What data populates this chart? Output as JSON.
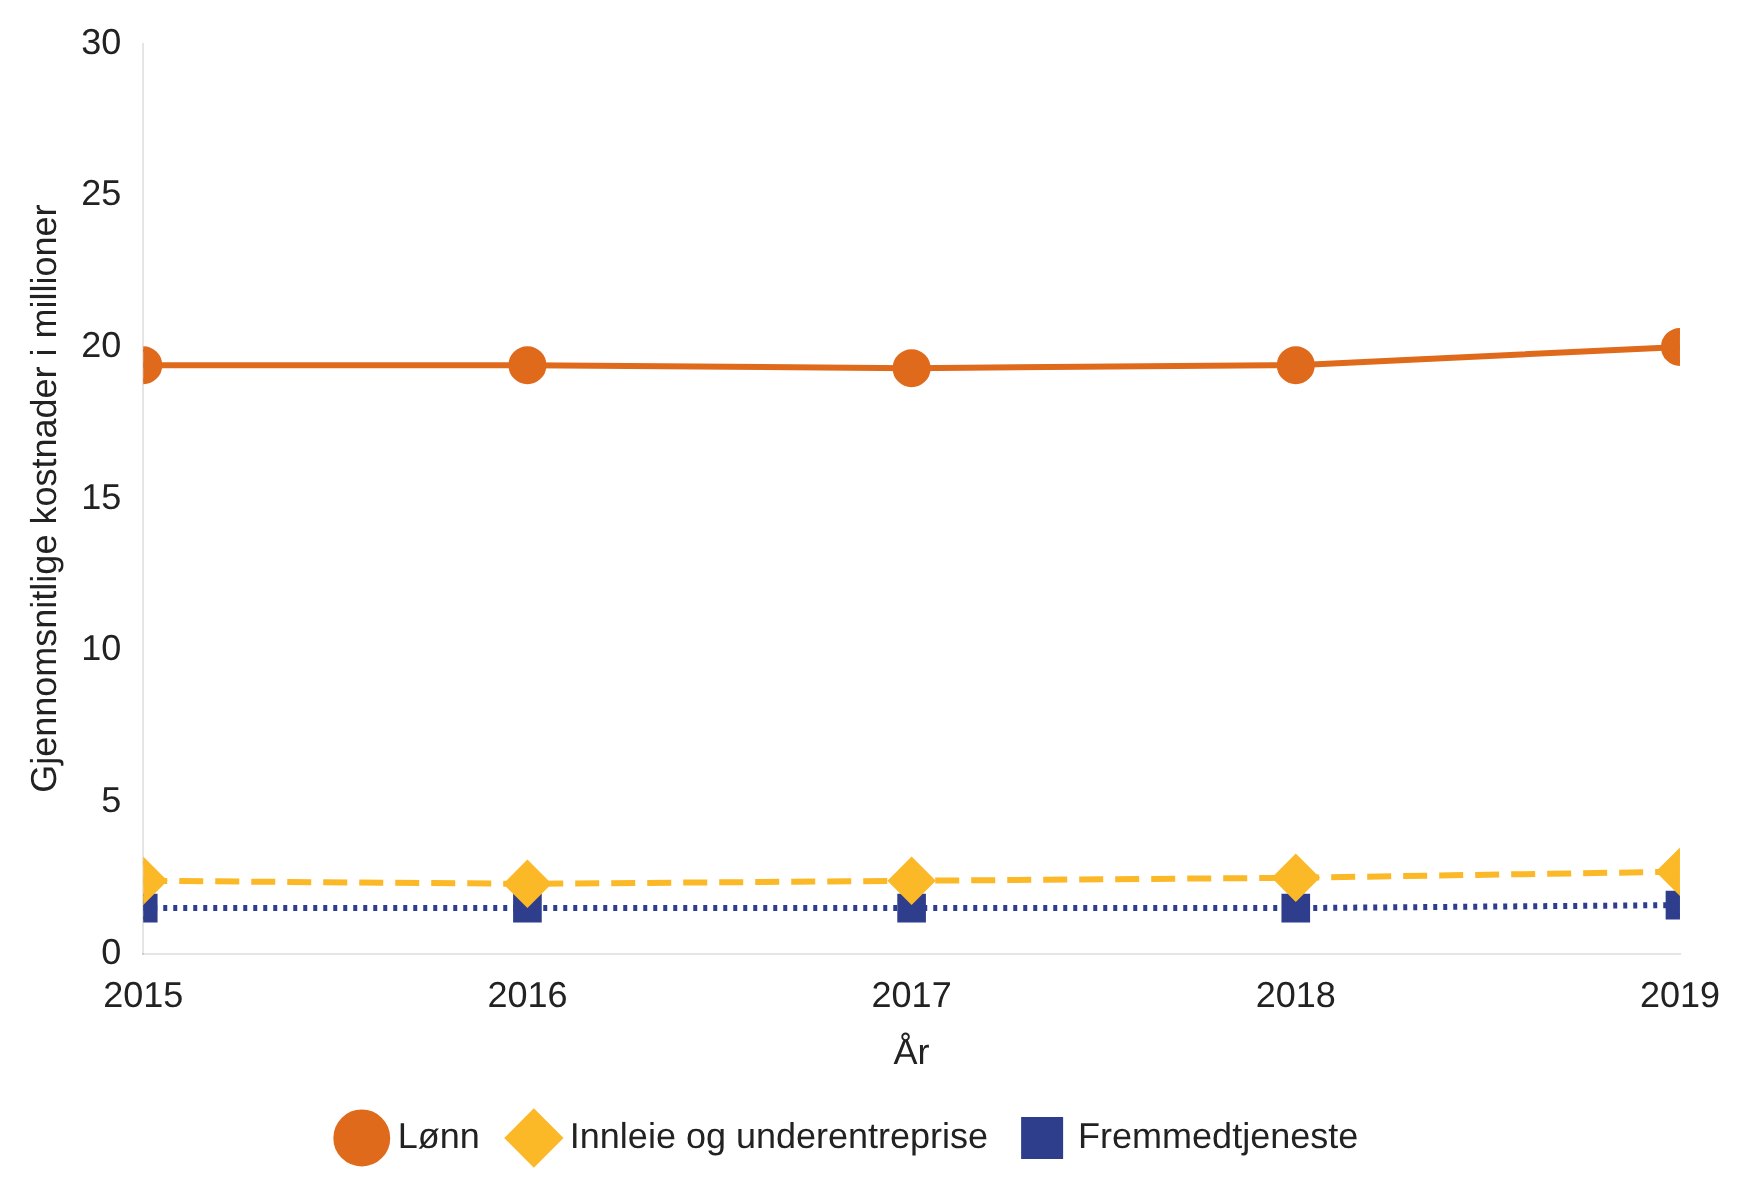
{
  "chart_data": {
    "type": "line",
    "xlabel": "År",
    "ylabel": "Gjennomsnitlige kostnader i millioner",
    "x": [
      2015,
      2016,
      2017,
      2018,
      2019
    ],
    "xlim": [
      2015,
      2019
    ],
    "xticks": [
      2015,
      2016,
      2017,
      2018,
      2019
    ],
    "ylim": [
      0,
      30
    ],
    "yticks": [
      0,
      5,
      10,
      15,
      20,
      25,
      30
    ],
    "grid": false,
    "legend": "bottom",
    "series": [
      {
        "name": "Lønn",
        "color": "#e06a1b",
        "values": [
          19.4,
          19.4,
          19.3,
          19.4,
          20.0
        ],
        "marker": "circle",
        "line_style": "solid"
      },
      {
        "name": "Innleie og underentreprise",
        "color": "#fbb827",
        "values": [
          2.4,
          2.3,
          2.4,
          2.5,
          2.7
        ],
        "marker": "diamond",
        "line_style": "dashed"
      },
      {
        "name": "Fremmedtjeneste",
        "color": "#2e3d8c",
        "values": [
          1.5,
          1.5,
          1.5,
          1.5,
          1.6
        ],
        "marker": "square",
        "line_style": "dotted"
      }
    ]
  }
}
